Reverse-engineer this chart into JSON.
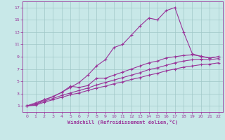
{
  "bg_color": "#c8e8e8",
  "grid_color": "#a0c8c8",
  "line_color": "#993399",
  "xlabel": "Windchill (Refroidissement éolien,°C)",
  "xlim": [
    -0.5,
    22.5
  ],
  "ylim": [
    0,
    18
  ],
  "xticks": [
    0,
    1,
    2,
    3,
    4,
    5,
    6,
    7,
    8,
    9,
    10,
    11,
    12,
    13,
    14,
    15,
    16,
    17,
    18,
    19,
    20,
    21,
    22
  ],
  "yticks": [
    1,
    3,
    5,
    7,
    9,
    11,
    13,
    15,
    17
  ],
  "series1": [
    [
      0,
      1
    ],
    [
      1,
      1.5
    ],
    [
      2,
      2
    ],
    [
      3,
      2.5
    ],
    [
      4,
      3.2
    ],
    [
      5,
      4
    ],
    [
      6,
      4.8
    ],
    [
      7,
      6
    ],
    [
      8,
      7.5
    ],
    [
      9,
      8.5
    ],
    [
      10,
      10.5
    ],
    [
      11,
      11
    ],
    [
      12,
      12.5
    ],
    [
      13,
      14
    ],
    [
      14,
      15.3
    ],
    [
      15,
      15
    ],
    [
      16,
      16.5
    ],
    [
      17,
      17
    ],
    [
      18,
      13
    ],
    [
      19,
      9.5
    ],
    [
      20,
      9
    ],
    [
      21,
      8.8
    ],
    [
      22,
      9
    ]
  ],
  "series2": [
    [
      0,
      1
    ],
    [
      1,
      1.3
    ],
    [
      2,
      2
    ],
    [
      3,
      2.5
    ],
    [
      4,
      3.2
    ],
    [
      5,
      4.2
    ],
    [
      6,
      4.0
    ],
    [
      7,
      4.3
    ],
    [
      8,
      5.5
    ],
    [
      9,
      5.5
    ],
    [
      10,
      6.0
    ],
    [
      11,
      6.5
    ],
    [
      12,
      7.0
    ],
    [
      13,
      7.5
    ],
    [
      14,
      8.0
    ],
    [
      15,
      8.3
    ],
    [
      16,
      8.8
    ],
    [
      17,
      9.0
    ],
    [
      18,
      9.2
    ],
    [
      19,
      9.3
    ],
    [
      20,
      9.1
    ],
    [
      21,
      8.8
    ],
    [
      22,
      9.0
    ]
  ],
  "series3": [
    [
      0,
      1
    ],
    [
      1,
      1.2
    ],
    [
      2,
      1.8
    ],
    [
      3,
      2.2
    ],
    [
      4,
      2.7
    ],
    [
      5,
      3.1
    ],
    [
      6,
      3.5
    ],
    [
      7,
      3.9
    ],
    [
      8,
      4.4
    ],
    [
      9,
      4.8
    ],
    [
      10,
      5.2
    ],
    [
      11,
      5.6
    ],
    [
      12,
      6.0
    ],
    [
      13,
      6.4
    ],
    [
      14,
      6.9
    ],
    [
      15,
      7.2
    ],
    [
      16,
      7.6
    ],
    [
      17,
      8.0
    ],
    [
      18,
      8.3
    ],
    [
      19,
      8.5
    ],
    [
      20,
      8.6
    ],
    [
      21,
      8.5
    ],
    [
      22,
      8.7
    ]
  ],
  "series4": [
    [
      0,
      1
    ],
    [
      1,
      1.1
    ],
    [
      2,
      1.6
    ],
    [
      3,
      2.0
    ],
    [
      4,
      2.4
    ],
    [
      5,
      2.8
    ],
    [
      6,
      3.1
    ],
    [
      7,
      3.5
    ],
    [
      8,
      3.9
    ],
    [
      9,
      4.2
    ],
    [
      10,
      4.6
    ],
    [
      11,
      4.9
    ],
    [
      12,
      5.3
    ],
    [
      13,
      5.6
    ],
    [
      14,
      6.0
    ],
    [
      15,
      6.3
    ],
    [
      16,
      6.7
    ],
    [
      17,
      7.0
    ],
    [
      18,
      7.3
    ],
    [
      19,
      7.5
    ],
    [
      20,
      7.7
    ],
    [
      21,
      7.8
    ],
    [
      22,
      8.0
    ]
  ]
}
